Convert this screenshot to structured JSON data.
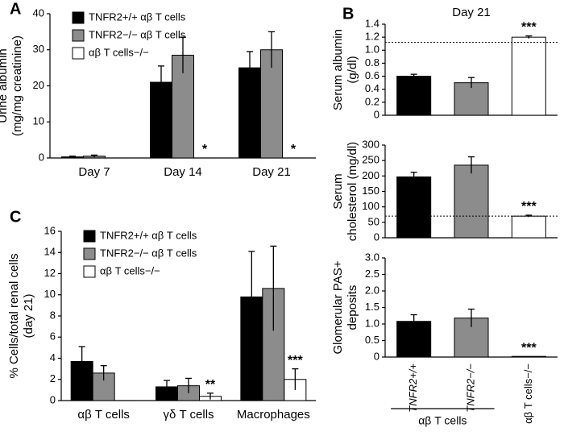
{
  "chart_data": [
    {
      "type": "bar",
      "label": "A",
      "ylabel": [
        "Urine albumin",
        "(mg/mg creatinine)"
      ],
      "categories": [
        "Day 7",
        "Day 14",
        "Day 21"
      ],
      "ylim": [
        0,
        40
      ],
      "yticks": [
        0,
        10,
        20,
        30,
        40
      ],
      "legend": "upper-left",
      "series": [
        {
          "name": "TNFR2+/+ αβ T cells",
          "color": "#000000",
          "values": [
            0.3,
            21,
            25
          ],
          "errors": [
            0.2,
            4.5,
            4.5
          ]
        },
        {
          "name": "TNFR2−/− αβ T cells",
          "color": "#8c8c8c",
          "values": [
            0.5,
            28.5,
            30
          ],
          "errors": [
            0.3,
            5,
            5
          ]
        },
        {
          "name": "αβ T cells−/−",
          "color": "#ffffff",
          "values": [
            0,
            0,
            0
          ],
          "errors": [
            null,
            null,
            null
          ],
          "annotations": [
            null,
            "*",
            "*"
          ]
        }
      ]
    },
    {
      "type": "bar",
      "label": "B",
      "title": "Day 21",
      "ylabel": [
        "Serum albumin",
        "(g/dl)"
      ],
      "ylim": [
        0,
        1.4
      ],
      "yticks": [
        0,
        0.2,
        0.4,
        0.6,
        0.8,
        {
          "value": 1,
          "label": "1.0"
        },
        1.2,
        1.4
      ],
      "reference_line": 1.12,
      "series": [
        {
          "colors": [
            "#000000",
            "#8c8c8c",
            "#ffffff"
          ],
          "values": [
            0.6,
            0.5,
            1.2
          ],
          "errors": [
            0.03,
            0.08,
            0.02
          ],
          "annotations": [
            null,
            null,
            "***"
          ]
        }
      ]
    },
    {
      "type": "bar",
      "ylabel": [
        "Serum",
        "cholesterol (mg/dl)"
      ],
      "ylim": [
        0,
        300
      ],
      "yticks": [
        0,
        50,
        100,
        150,
        200,
        250,
        300
      ],
      "reference_line": 70,
      "series": [
        {
          "colors": [
            "#000000",
            "#8c8c8c",
            "#ffffff"
          ],
          "values": [
            197,
            235,
            70
          ],
          "errors": [
            15,
            27,
            3
          ],
          "annotations": [
            null,
            null,
            "***"
          ]
        }
      ]
    },
    {
      "type": "bar",
      "ylabel": [
        "Glomerular PAS+",
        "deposits"
      ],
      "categories": [
        "TNFR2+/+",
        "TNFR2−/−",
        "αβ T cells−/−"
      ],
      "category_group": "αβ T cells",
      "ylim": [
        0,
        3
      ],
      "yticks": [
        0,
        0.5,
        {
          "value": 1,
          "label": "1.0"
        },
        1.5,
        {
          "value": 2,
          "label": "2.0"
        },
        2.5,
        {
          "value": 3,
          "label": "3.0"
        }
      ],
      "series": [
        {
          "colors": [
            "#000000",
            "#8c8c8c",
            "#ffffff"
          ],
          "values": [
            1.08,
            1.18,
            0.02
          ],
          "errors": [
            0.2,
            0.27,
            null
          ],
          "annotations": [
            null,
            null,
            "***"
          ]
        }
      ]
    },
    {
      "type": "bar",
      "label": "C",
      "ylabel": [
        "% Cells/total renal cells",
        "(day 21)"
      ],
      "categories": [
        "αβ T cells",
        "γδ T cells",
        "Macrophages"
      ],
      "ylim": [
        0,
        16
      ],
      "yticks": [
        0,
        2,
        4,
        6,
        8,
        10,
        12,
        14,
        16
      ],
      "legend": "upper-left",
      "series": [
        {
          "name": "TNFR2+/+ αβ T cells",
          "color": "#000000",
          "values": [
            3.7,
            1.3,
            9.8
          ],
          "errors": [
            1.4,
            0.6,
            4.3
          ]
        },
        {
          "name": "TNFR2−/− αβ T cells",
          "color": "#8c8c8c",
          "values": [
            2.6,
            1.4,
            10.6
          ],
          "errors": [
            0.7,
            0.7,
            4.0
          ]
        },
        {
          "name": "αβ T cells−/−",
          "color": "#ffffff",
          "values": [
            0,
            0.4,
            2.0
          ],
          "errors": [
            null,
            0.3,
            1.0
          ],
          "annotations": [
            null,
            "**",
            "***"
          ]
        }
      ]
    }
  ]
}
